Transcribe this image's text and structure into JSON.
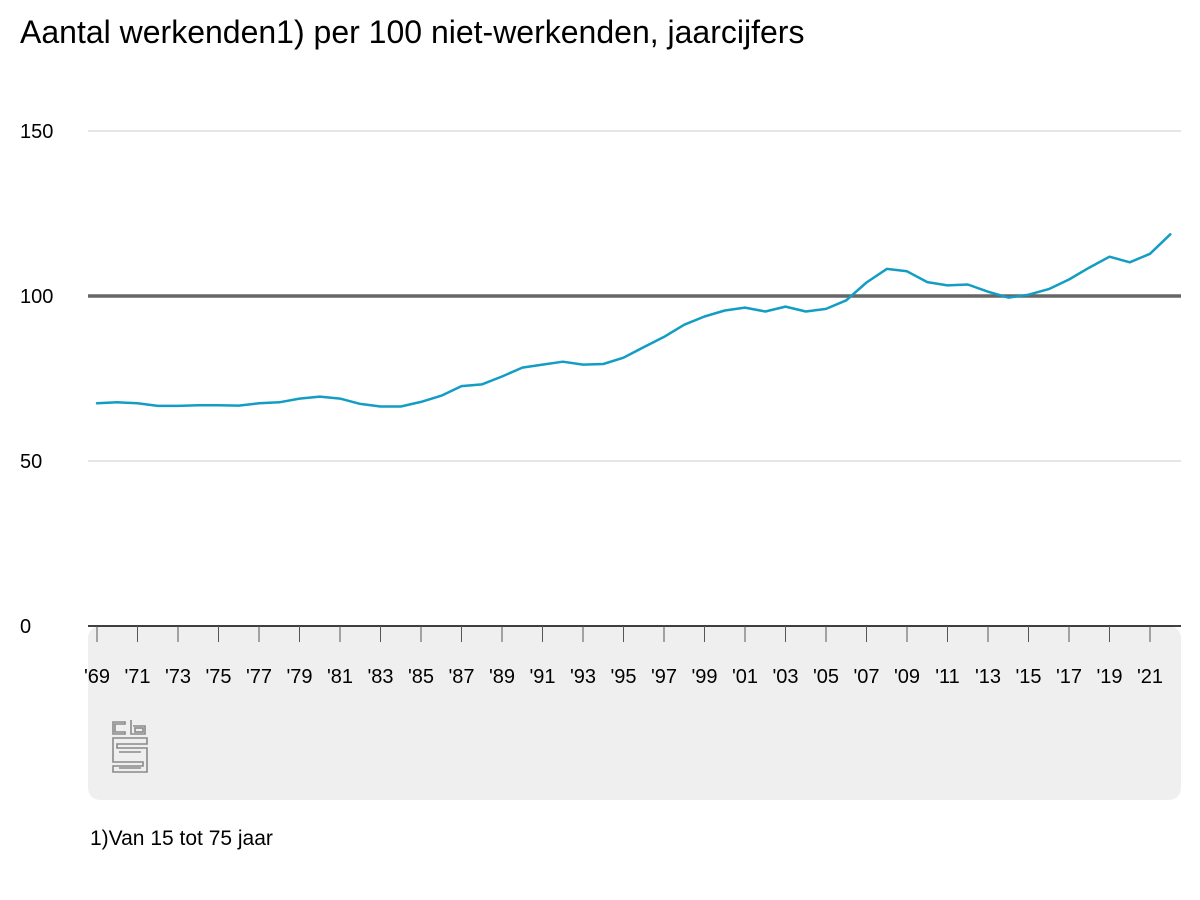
{
  "title": "Aantal werkenden1) per 100 niet-werkenden, jaarcijfers",
  "footnote": "1)Van 15 tot 75 jaar",
  "logo": {
    "icon": "cbs-logo-icon",
    "text": "cbs",
    "color": "#8a8a8a"
  },
  "colors": {
    "line": "#139dc4",
    "reference_line": "#666666",
    "gridline": "#cccccc",
    "footer_band": "#efefef"
  },
  "chart_data": {
    "type": "line",
    "title": "Aantal werkenden1) per 100 niet-werkenden, jaarcijfers",
    "xlabel": "",
    "ylabel": "",
    "x": [
      1969,
      1970,
      1971,
      1972,
      1973,
      1974,
      1975,
      1976,
      1977,
      1978,
      1979,
      1980,
      1981,
      1982,
      1983,
      1984,
      1985,
      1986,
      1987,
      1988,
      1989,
      1990,
      1991,
      1992,
      1993,
      1994,
      1995,
      1996,
      1997,
      1998,
      1999,
      2000,
      2001,
      2002,
      2003,
      2004,
      2005,
      2006,
      2007,
      2008,
      2009,
      2010,
      2011,
      2012,
      2013,
      2014,
      2015,
      2016,
      2017,
      2018,
      2019,
      2020,
      2021,
      2022
    ],
    "series": [
      {
        "values": [
          67.5,
          67.8,
          67.5,
          66.7,
          66.7,
          66.9,
          66.9,
          66.8,
          67.5,
          67.8,
          68.9,
          69.5,
          68.9,
          67.3,
          66.5,
          66.5,
          67.9,
          69.8,
          72.7,
          73.2,
          75.6,
          78.3,
          79.2,
          80.1,
          79.2,
          79.4,
          81.3,
          84.5,
          87.6,
          91.3,
          93.8,
          95.6,
          96.5,
          95.3,
          96.8,
          95.3,
          96.1,
          98.7,
          104.1,
          108.2,
          107.5,
          104.2,
          103.2,
          103.5,
          101.3,
          99.5,
          100.4,
          102.1,
          105.0,
          108.6,
          111.9,
          110.2,
          112.8,
          118.7
        ]
      }
    ],
    "ylim": [
      0,
      150
    ],
    "yticks": [
      0,
      50,
      100,
      150
    ],
    "reference_line": 100,
    "x_tick_labels": [
      "'69",
      "'71",
      "'73",
      "'75",
      "'77",
      "'79",
      "'81",
      "'83",
      "'85",
      "'87",
      "'89",
      "'91",
      "'93",
      "'95",
      "'97",
      "'99",
      "'01",
      "'03",
      "'05",
      "'07",
      "'09",
      "'11",
      "'13",
      "'15",
      "'17",
      "'19",
      "'21"
    ],
    "grid": true,
    "legend": "none"
  }
}
